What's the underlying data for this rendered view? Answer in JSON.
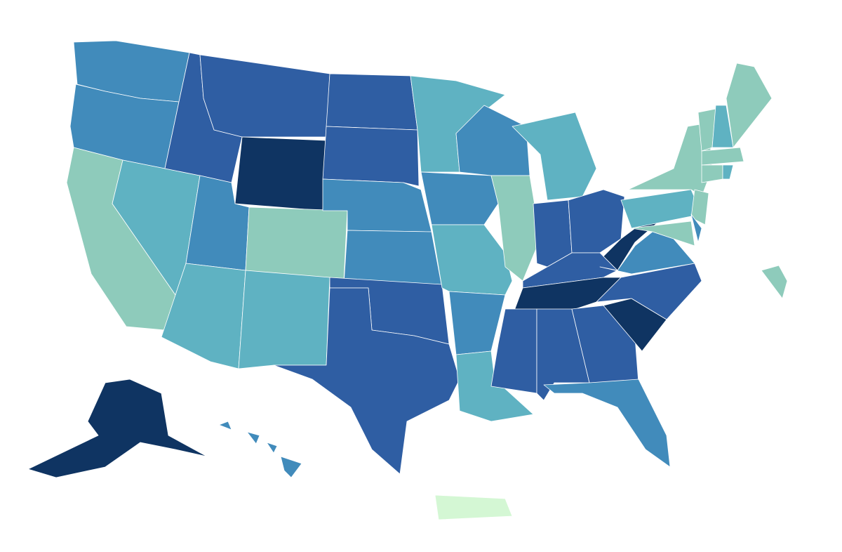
{
  "map": {
    "palette": [
      "#d4f7d4",
      "#8ecbbb",
      "#5fb2c2",
      "#418bbb",
      "#2f5ea3",
      "#0f3462"
    ],
    "border_color": "#ffffff"
  }
}
